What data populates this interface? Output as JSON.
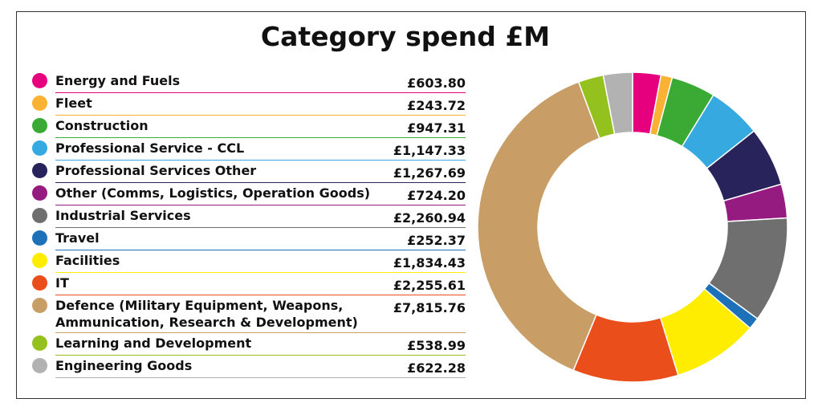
{
  "chart_data": {
    "type": "donut",
    "title": "Category spend £M",
    "categories": [
      "Energy and Fuels",
      "Fleet",
      "Construction",
      "Professional Service - CCL",
      "Professional Services Other",
      "Other (Comms, Logistics, Operation Goods)",
      "Industrial Services",
      "Travel",
      "Facilities",
      "IT",
      "Defence (Military Equipment, Weapons, Ammunication, Research & Development)",
      "Learning and Development",
      "Engineering Goods"
    ],
    "values": [
      603.8,
      243.72,
      947.31,
      1147.33,
      1267.69,
      724.2,
      2260.94,
      252.37,
      1834.43,
      2255.61,
      7815.76,
      538.99,
      622.28
    ],
    "value_labels": [
      "£603.80",
      "£243.72",
      "£947.31",
      "£1,147.33",
      "£1,267.69",
      "£724.20",
      "£2,260.94",
      "£252.37",
      "£1,834.43",
      "£2,255.61",
      "£7,815.76",
      "£538.99",
      "£622.28"
    ],
    "colors": [
      "#e6007e",
      "#f9b233",
      "#3aaa35",
      "#36a9e1",
      "#29235c",
      "#951b81",
      "#706f6f",
      "#1d71b8",
      "#ffed00",
      "#e94e1b",
      "#c89d66",
      "#95c11f",
      "#b2b2b2"
    ]
  }
}
